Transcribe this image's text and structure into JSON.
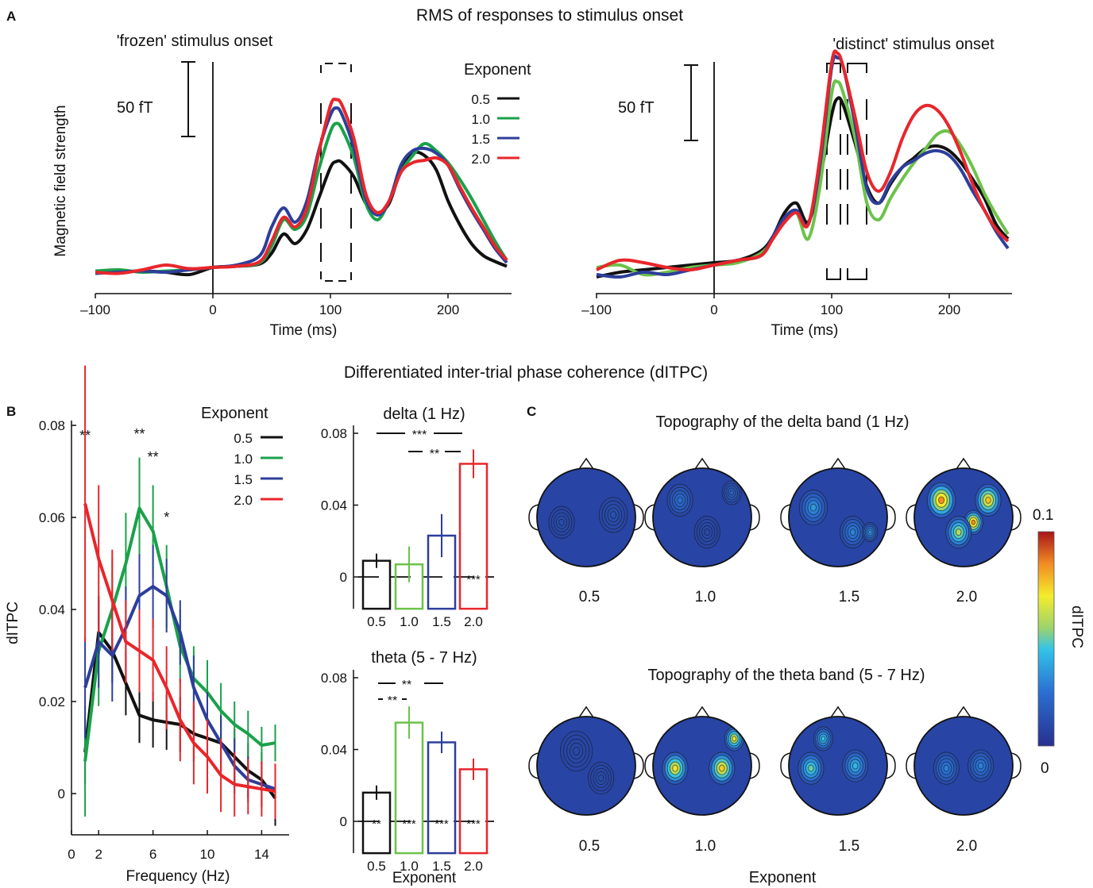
{
  "panel_letters": {
    "a": "A",
    "b": "B",
    "c": "C"
  },
  "section_titles": {
    "a": "RMS of responses to stimulus onset",
    "b": "Differentiated inter-trial phase coherence (dITPC)"
  },
  "colors": {
    "0.5": "#111111",
    "1.0": "#1aa14a",
    "1.5": "#2d3e9a",
    "2.0": "#e8262b",
    "1.0_alt": "#6cc24a"
  },
  "chart_data": [
    {
      "id": "rms-frozen",
      "type": "line",
      "title": "'frozen' stimulus onset",
      "xlabel": "Time (ms)",
      "ylabel": "Magnetic field strength",
      "xlim": [
        -100,
        250
      ],
      "xticks": [
        -100,
        0,
        100,
        200
      ],
      "xtick_labels": [
        "–100",
        "0",
        "100",
        "200"
      ],
      "scale_bar_label": "50 fT",
      "legend_title": "Exponent",
      "x": [
        -100,
        -80,
        -60,
        -40,
        -20,
        0,
        20,
        40,
        50,
        60,
        70,
        80,
        90,
        100,
        105,
        110,
        120,
        130,
        140,
        150,
        160,
        170,
        180,
        190,
        200,
        210,
        220,
        230,
        240,
        250
      ],
      "series": [
        {
          "name": "0.5",
          "color": "#111111",
          "values": [
            0,
            0,
            1,
            0,
            -2,
            4,
            5,
            7,
            16,
            32,
            24,
            36,
            62,
            88,
            93,
            92,
            80,
            58,
            50,
            58,
            86,
            100,
            98,
            86,
            60,
            40,
            24,
            14,
            9,
            5
          ]
        },
        {
          "name": "1.0",
          "color": "#1aa14a",
          "values": [
            1,
            2,
            0,
            1,
            2,
            4,
            5,
            8,
            22,
            44,
            36,
            48,
            86,
            118,
            125,
            120,
            96,
            58,
            44,
            60,
            84,
            98,
            108,
            102,
            92,
            78,
            62,
            44,
            26,
            10
          ]
        },
        {
          "name": "1.5",
          "color": "#2d3e9a",
          "values": [
            -1,
            0,
            1,
            0,
            2,
            4,
            6,
            14,
            38,
            54,
            42,
            60,
            102,
            132,
            138,
            132,
            104,
            62,
            48,
            60,
            90,
            102,
            104,
            100,
            90,
            70,
            52,
            36,
            20,
            8
          ]
        },
        {
          "name": "2.0",
          "color": "#e8262b",
          "values": [
            0,
            -1,
            2,
            6,
            3,
            4,
            5,
            9,
            26,
            46,
            38,
            54,
            100,
            140,
            145,
            140,
            112,
            66,
            50,
            60,
            84,
            92,
            94,
            96,
            90,
            72,
            54,
            38,
            22,
            10
          ]
        }
      ]
    },
    {
      "id": "rms-distinct",
      "type": "line",
      "title": "'distinct' stimulus onset",
      "xlabel": "Time (ms)",
      "xlim": [
        -100,
        250
      ],
      "xticks": [
        -100,
        0,
        100,
        200
      ],
      "xtick_labels": [
        "–100",
        "0",
        "100",
        "200"
      ],
      "scale_bar_label": "50 fT",
      "x": [
        -100,
        -80,
        -60,
        -40,
        -20,
        0,
        20,
        40,
        50,
        60,
        70,
        80,
        90,
        100,
        105,
        110,
        120,
        130,
        140,
        150,
        160,
        170,
        180,
        190,
        200,
        210,
        220,
        230,
        240,
        250
      ],
      "series": [
        {
          "name": "0.5",
          "color": "#111111",
          "values": [
            -4,
            0,
            2,
            4,
            6,
            8,
            10,
            18,
            30,
            50,
            58,
            42,
            78,
            132,
            146,
            140,
            108,
            72,
            58,
            74,
            88,
            96,
            104,
            106,
            102,
            92,
            78,
            62,
            40,
            28
          ]
        },
        {
          "name": "1.0",
          "color": "#6cc24a",
          "values": [
            4,
            6,
            -2,
            0,
            4,
            6,
            8,
            16,
            28,
            44,
            50,
            28,
            72,
            150,
            160,
            150,
            112,
            58,
            44,
            62,
            78,
            92,
            104,
            116,
            118,
            106,
            88,
            66,
            48,
            32
          ]
        },
        {
          "name": "1.5",
          "color": "#2d3e9a",
          "values": [
            -2,
            -4,
            0,
            -2,
            2,
            6,
            10,
            14,
            30,
            46,
            52,
            40,
            90,
            172,
            180,
            172,
            124,
            70,
            58,
            76,
            88,
            94,
            100,
            102,
            98,
            86,
            68,
            52,
            34,
            20
          ]
        },
        {
          "name": "2.0",
          "color": "#e8262b",
          "values": [
            2,
            10,
            8,
            4,
            2,
            6,
            10,
            14,
            28,
            42,
            50,
            40,
            96,
            176,
            184,
            172,
            130,
            84,
            68,
            84,
            112,
            132,
            140,
            136,
            122,
            100,
            74,
            52,
            36,
            26
          ]
        }
      ]
    },
    {
      "id": "dITPC-frequency",
      "type": "line",
      "xlabel": "Frequency (Hz)",
      "ylabel": "dITPC",
      "xlim": [
        0,
        16
      ],
      "ylim": [
        -0.008,
        0.08
      ],
      "xticks": [
        0,
        2,
        6,
        10,
        14
      ],
      "yticks": [
        0,
        0.02,
        0.04,
        0.06,
        0.08
      ],
      "ytick_labels": [
        "0",
        "0.02",
        "0.04",
        "0.06",
        "0.08"
      ],
      "legend_title": "Exponent",
      "x": [
        1,
        2,
        3,
        4,
        5,
        6,
        7,
        8,
        9,
        10,
        11,
        12,
        13,
        14,
        15
      ],
      "series": [
        {
          "name": "0.5",
          "color": "#111111",
          "values": [
            0.009,
            0.035,
            0.031,
            0.024,
            0.017,
            0.016,
            0.0155,
            0.015,
            0.013,
            0.012,
            0.011,
            0.008,
            0.005,
            0.003,
            -0.001
          ],
          "err": [
            0.007,
            0.007,
            0.007,
            0.007,
            0.006,
            0.006,
            0.006,
            0.006,
            0.006,
            0.006,
            0.006,
            0.006,
            0.006,
            0.006,
            0.006
          ]
        },
        {
          "name": "1.0",
          "color": "#1aa14a",
          "values": [
            0.007,
            0.031,
            0.04,
            0.05,
            0.062,
            0.057,
            0.045,
            0.032,
            0.025,
            0.022,
            0.018,
            0.015,
            0.013,
            0.0105,
            0.011
          ],
          "err": [
            0.012,
            0.012,
            0.011,
            0.011,
            0.011,
            0.01,
            0.009,
            0.008,
            0.007,
            0.007,
            0.006,
            0.005,
            0.005,
            0.004,
            0.004
          ]
        },
        {
          "name": "1.5",
          "color": "#2d3e9a",
          "values": [
            0.023,
            0.033,
            0.03,
            0.036,
            0.043,
            0.045,
            0.043,
            0.035,
            0.023,
            0.016,
            0.011,
            0.006,
            0.003,
            0.002,
            0.001
          ],
          "err": [
            0.011,
            0.01,
            0.01,
            0.009,
            0.009,
            0.009,
            0.008,
            0.007,
            0.007,
            0.006,
            0.006,
            0.006,
            0.005,
            0.005,
            0.005
          ]
        },
        {
          "name": "2.0",
          "color": "#e8262b",
          "values": [
            0.063,
            0.051,
            0.042,
            0.033,
            0.031,
            0.029,
            0.023,
            0.016,
            0.011,
            0.008,
            0.004,
            0.002,
            0.0015,
            0.001,
            0.0005
          ],
          "err": [
            0.03,
            0.016,
            0.011,
            0.009,
            0.009,
            0.009,
            0.009,
            0.009,
            0.009,
            0.008,
            0.008,
            0.007,
            0.006,
            0.006,
            0.006
          ]
        }
      ],
      "significance": [
        {
          "x": 1,
          "label": "**"
        },
        {
          "x": 5,
          "label": "**"
        },
        {
          "x": 6,
          "label": "**"
        },
        {
          "x": 7,
          "label": "*"
        }
      ]
    },
    {
      "id": "delta-bar",
      "type": "bar",
      "title": "delta (1 Hz)",
      "categories": [
        "0.5",
        "1.0",
        "1.5",
        "2.0"
      ],
      "values": [
        0.009,
        0.007,
        0.023,
        0.063
      ],
      "err": [
        0.004,
        0.01,
        0.012,
        0.008
      ],
      "colors": [
        "#111111",
        "#6cc24a",
        "#2d3e9a",
        "#e8262b"
      ],
      "ylim": [
        -0.008,
        0.08
      ],
      "yticks": [
        0,
        0.04,
        0.08
      ],
      "ytick_labels": [
        "0",
        "0.04",
        "0.08"
      ],
      "zero_stars": [
        null,
        null,
        null,
        "***"
      ],
      "brackets": [
        {
          "from": 0,
          "to": 3,
          "label": "***"
        },
        {
          "from": 2,
          "to": 3,
          "label": "**"
        }
      ]
    },
    {
      "id": "theta-bar",
      "type": "bar",
      "title": "theta (5 - 7 Hz)",
      "xlabel": "Exponent",
      "categories": [
        "0.5",
        "1.0",
        "1.5",
        "2.0"
      ],
      "values": [
        0.016,
        0.055,
        0.044,
        0.029
      ],
      "err": [
        0.004,
        0.009,
        0.006,
        0.006
      ],
      "colors": [
        "#111111",
        "#6cc24a",
        "#2d3e9a",
        "#e8262b"
      ],
      "ylim": [
        -0.008,
        0.08
      ],
      "yticks": [
        0,
        0.04,
        0.08
      ],
      "ytick_labels": [
        "0",
        "0.04",
        "0.08"
      ],
      "zero_stars": [
        "**",
        "***",
        "***",
        "***"
      ],
      "brackets": [
        {
          "from": 0,
          "to": 2,
          "label": "**"
        },
        {
          "from": 0,
          "to": 1,
          "label": "**"
        }
      ]
    },
    {
      "id": "topography",
      "type": "heatmap",
      "rows": [
        {
          "title": "Topography of the delta band (1 Hz)",
          "levels": [
            0.25,
            0.35,
            0.5,
            0.85
          ]
        },
        {
          "title": "Topography of the theta band (5 - 7 Hz)",
          "levels": [
            0.25,
            0.75,
            0.6,
            0.45
          ]
        }
      ],
      "columns": [
        "0.5",
        "1.0",
        "1.5",
        "2.0"
      ],
      "xlabel": "Exponent",
      "colorbar": {
        "label": "dITPC",
        "min_label": "0",
        "max_label": "0.1",
        "range": [
          0,
          0.1
        ]
      }
    }
  ]
}
